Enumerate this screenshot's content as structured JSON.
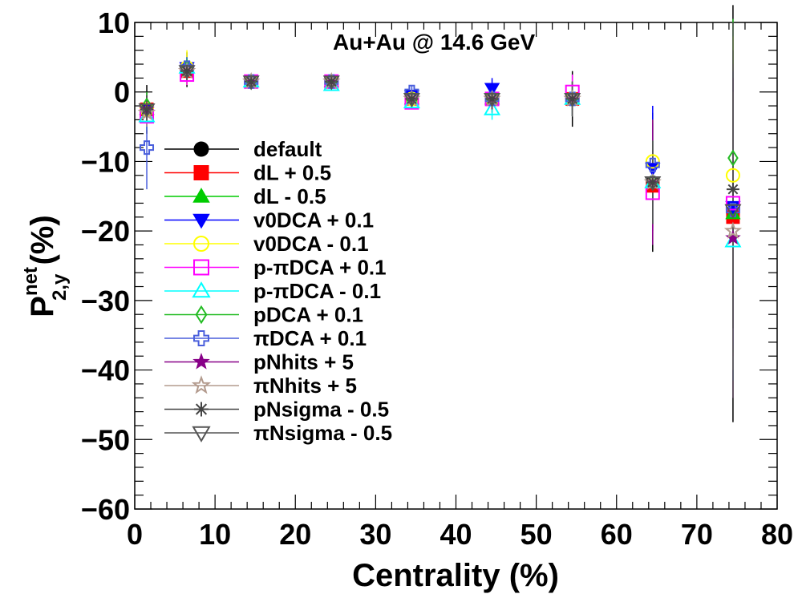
{
  "chart_data": {
    "type": "scatter",
    "annotation": "Au+Au @ 14.6 GeV",
    "xlabel": "Centrality (%)",
    "ylabel": {
      "main": "P",
      "sup": "net",
      "sub": "2,y",
      "unit": " (%)"
    },
    "xlim": [
      0,
      80
    ],
    "ylim": [
      -60,
      10
    ],
    "xticks": [
      0,
      10,
      20,
      30,
      40,
      50,
      60,
      70,
      80
    ],
    "yticks": [
      10,
      0,
      -10,
      -20,
      -30,
      -40,
      -50,
      -60
    ],
    "xtick_labels": [
      "0",
      "10",
      "20",
      "30",
      "40",
      "50",
      "60",
      "70",
      "80"
    ],
    "ytick_labels": [
      "10",
      "0",
      "−10",
      "−20",
      "−30",
      "−40",
      "−50",
      "−60"
    ],
    "x": [
      1.5,
      6.5,
      14.5,
      24.5,
      34.5,
      44.5,
      54.5,
      64.5,
      74.5
    ],
    "legend_position": "middle-left",
    "series": [
      {
        "name": "default",
        "color": "#000000",
        "marker": "circle-filled",
        "y": [
          -2.5,
          3.2,
          1.5,
          1.5,
          -1.0,
          -1.0,
          -1.0,
          -13.0,
          -17.5
        ],
        "err": [
          3.5,
          2.5,
          0.8,
          0.8,
          1.2,
          2.0,
          4.0,
          10.0,
          30.0
        ]
      },
      {
        "name": "dL + 0.5",
        "color": "#ff0000",
        "marker": "square-filled",
        "y": [
          -2.5,
          3.0,
          1.5,
          1.5,
          -1.0,
          -1.0,
          -1.0,
          -13.5,
          -18.0
        ],
        "err": [
          2.0,
          1.5,
          0.8,
          0.8,
          1.0,
          1.5,
          2.5,
          6.0,
          20.0
        ]
      },
      {
        "name": "dL - 0.5",
        "color": "#00cc00",
        "marker": "triangle-up-filled",
        "y": [
          -2.5,
          3.5,
          1.5,
          1.5,
          -1.0,
          -1.0,
          -1.0,
          -13.0,
          -17.5
        ],
        "err": [
          2.0,
          1.5,
          0.8,
          0.8,
          1.0,
          1.5,
          2.5,
          6.0,
          20.0
        ]
      },
      {
        "name": "v0DCA + 0.1",
        "color": "#0000ff",
        "marker": "triangle-down-filled",
        "y": [
          -2.5,
          3.5,
          1.5,
          1.5,
          -0.5,
          0.5,
          -1.0,
          -11.0,
          -16.5
        ],
        "err": [
          2.0,
          1.5,
          0.8,
          0.8,
          1.0,
          1.5,
          2.5,
          9.0,
          20.0
        ]
      },
      {
        "name": "v0DCA - 0.1",
        "color": "#ffff00",
        "marker": "circle-open",
        "y": [
          -2.5,
          3.5,
          1.5,
          1.5,
          -1.0,
          -1.0,
          -1.0,
          -10.0,
          -12.0
        ],
        "err": [
          2.0,
          2.5,
          0.8,
          0.8,
          1.0,
          1.5,
          2.5,
          6.0,
          20.0
        ]
      },
      {
        "name": "p-πDCA + 0.1",
        "color": "#ff00ff",
        "marker": "square-open",
        "y": [
          -3.5,
          2.5,
          1.5,
          1.5,
          -1.5,
          -1.0,
          0.0,
          -14.5,
          -16.0
        ],
        "err": [
          2.0,
          1.5,
          0.8,
          0.8,
          1.0,
          1.5,
          2.5,
          6.0,
          20.0
        ]
      },
      {
        "name": "p-πDCA - 0.1",
        "color": "#00ffff",
        "marker": "triangle-up-open",
        "y": [
          -3.5,
          3.5,
          1.5,
          1.0,
          -1.5,
          -2.5,
          -1.0,
          -13.0,
          -21.5
        ],
        "err": [
          2.0,
          1.5,
          0.8,
          0.8,
          1.0,
          1.5,
          2.5,
          6.0,
          20.0
        ]
      },
      {
        "name": "pDCA + 0.1",
        "color": "#22bb22",
        "marker": "diamond-open",
        "y": [
          -2.0,
          3.5,
          1.5,
          1.5,
          -1.0,
          -1.0,
          -1.0,
          -13.0,
          -9.5
        ],
        "err": [
          2.0,
          1.5,
          0.8,
          0.8,
          1.0,
          1.5,
          2.5,
          6.0,
          20.0
        ]
      },
      {
        "name": "πDCA + 0.1",
        "color": "#4a5fdc",
        "marker": "cross-open",
        "y": [
          -8.0,
          3.5,
          1.5,
          1.5,
          0.0,
          -1.0,
          -1.0,
          -10.5,
          -17.0
        ],
        "err": [
          6.0,
          1.5,
          0.8,
          0.8,
          1.0,
          1.5,
          2.5,
          6.0,
          20.0
        ]
      },
      {
        "name": "pNhits + 5",
        "color": "#880088",
        "marker": "star-filled",
        "y": [
          -2.5,
          3.0,
          1.5,
          1.5,
          -1.0,
          -1.0,
          -1.0,
          -13.0,
          -21.0
        ],
        "err": [
          2.0,
          1.5,
          0.8,
          0.8,
          1.0,
          1.5,
          2.5,
          9.0,
          23.0
        ]
      },
      {
        "name": "πNhits + 5",
        "color": "#b39b8e",
        "marker": "star-open",
        "y": [
          -3.0,
          3.0,
          1.5,
          1.5,
          -1.0,
          -1.0,
          -1.0,
          -13.0,
          -20.0
        ],
        "err": [
          2.0,
          1.5,
          0.8,
          0.8,
          1.0,
          1.5,
          2.5,
          6.0,
          20.0
        ]
      },
      {
        "name": "pNsigma - 0.5",
        "color": "#444444",
        "marker": "asterisk",
        "y": [
          -2.5,
          3.0,
          1.5,
          1.5,
          -1.0,
          -1.0,
          -1.0,
          -13.0,
          -14.0
        ],
        "err": [
          2.0,
          1.5,
          0.8,
          0.8,
          1.0,
          1.5,
          2.5,
          6.0,
          20.0
        ]
      },
      {
        "name": "πNsigma - 0.5",
        "color": "#555555",
        "marker": "triangle-down-open",
        "y": [
          -2.5,
          3.0,
          1.5,
          1.5,
          -1.0,
          -1.0,
          -1.0,
          -13.0,
          -17.0
        ],
        "err": [
          2.0,
          1.5,
          0.8,
          0.8,
          1.0,
          1.5,
          2.5,
          6.0,
          27.0
        ]
      }
    ]
  }
}
